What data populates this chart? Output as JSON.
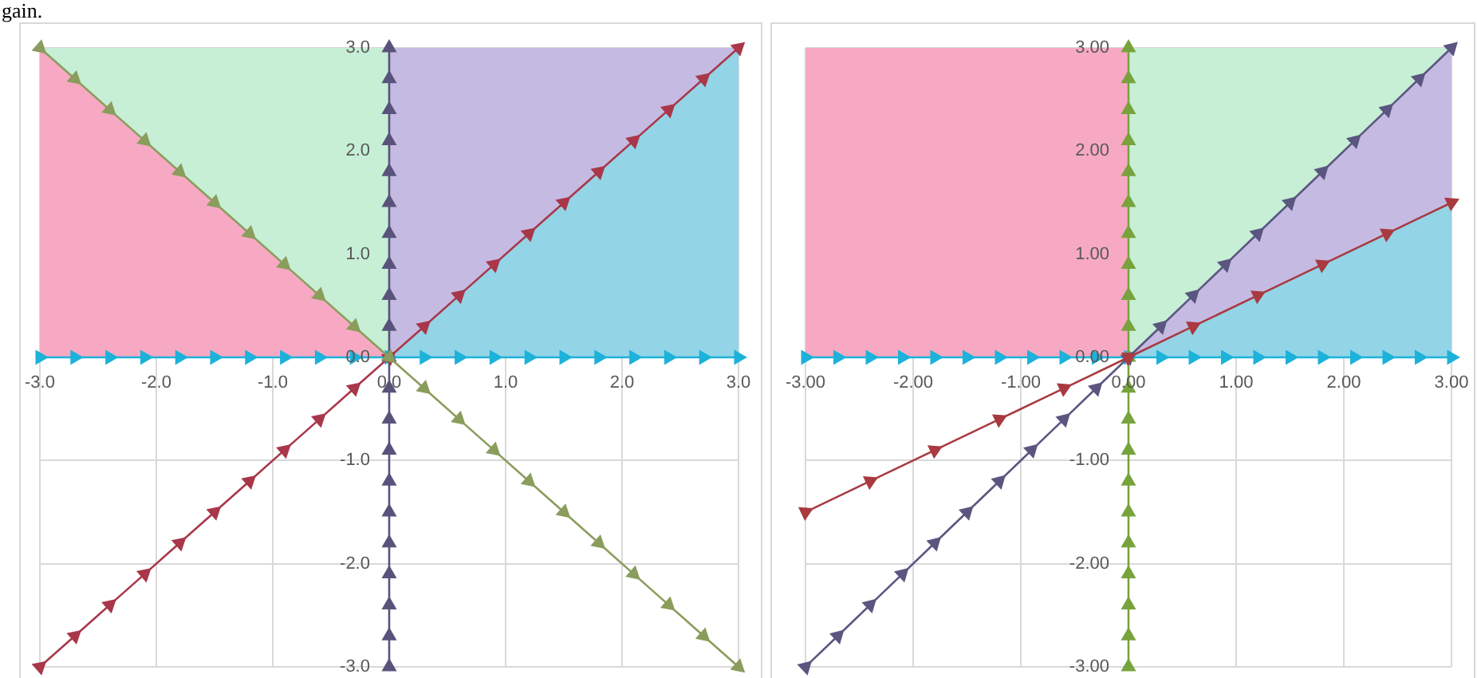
{
  "chart_data": [
    {
      "type": "line",
      "annotations": [
        "gain."
      ],
      "xlim": [
        -3,
        3
      ],
      "ylim": [
        -3,
        3
      ],
      "xticks": [
        {
          "value": -3,
          "label": "-3.0"
        },
        {
          "value": -2,
          "label": "-2.0"
        },
        {
          "value": -1,
          "label": "-1.0"
        },
        {
          "value": 0,
          "label": "0.0"
        },
        {
          "value": 1,
          "label": "1.0"
        },
        {
          "value": 2,
          "label": "2.0"
        },
        {
          "value": 3,
          "label": "3.0"
        }
      ],
      "yticks": [
        {
          "value": -3,
          "label": "-3.0"
        },
        {
          "value": -2,
          "label": "-2.0"
        },
        {
          "value": -1,
          "label": "-1.0"
        },
        {
          "value": 0,
          "label": "0.0"
        },
        {
          "value": 1,
          "label": "1.0"
        },
        {
          "value": 2,
          "label": "2.0"
        },
        {
          "value": 3,
          "label": "3.0"
        }
      ],
      "grid": true,
      "series": [
        {
          "type": "area",
          "color": "#c6efd6",
          "x": [
            -3,
            0
          ],
          "values": [
            3,
            3
          ]
        },
        {
          "type": "area",
          "color": "#f7a9c4",
          "x": [
            -3,
            0,
            3
          ],
          "values": [
            3,
            0,
            0
          ]
        },
        {
          "type": "area",
          "color": "#c5bbe2",
          "x": [
            0,
            3
          ],
          "values": [
            3,
            3
          ]
        },
        {
          "type": "area",
          "color": "#93d4e6",
          "x": [
            -0.3,
            0,
            3
          ],
          "values": [
            0,
            0,
            3
          ]
        },
        {
          "color": "#1cb2da",
          "marker": "triangle",
          "x": [
            -3,
            -2.7,
            -2.4,
            -2.1,
            -1.8,
            -1.5,
            -1.2,
            -0.9,
            -0.6,
            -0.3,
            0,
            0.3,
            0.6,
            0.9,
            1.2,
            1.5,
            1.8,
            2.1,
            2.4,
            2.7,
            3
          ],
          "values": [
            0,
            0,
            0,
            0,
            0,
            0,
            0,
            0,
            0,
            0,
            0,
            0,
            0,
            0,
            0,
            0,
            0,
            0,
            0,
            0,
            0
          ]
        },
        {
          "color": "#59537c",
          "marker": "triangle",
          "x": [
            0,
            0,
            0,
            0,
            0,
            0,
            0,
            0,
            0,
            0,
            0,
            0,
            0,
            0,
            0,
            0,
            0,
            0,
            0,
            0,
            0
          ],
          "values": [
            -3,
            -2.7,
            -2.4,
            -2.1,
            -1.8,
            -1.5,
            -1.2,
            -0.9,
            -0.6,
            -0.3,
            0,
            0.3,
            0.6,
            0.9,
            1.2,
            1.5,
            1.8,
            2.1,
            2.4,
            2.7,
            3
          ]
        },
        {
          "color": "#a9374a",
          "marker": "triangle",
          "x": [
            -3,
            -2.7,
            -2.4,
            -2.1,
            -1.8,
            -1.5,
            -1.2,
            -0.9,
            -0.6,
            -0.3,
            0,
            0.3,
            0.6,
            0.9,
            1.2,
            1.5,
            1.8,
            2.1,
            2.4,
            2.7,
            3
          ],
          "values": [
            -3,
            -2.7,
            -2.4,
            -2.1,
            -1.8,
            -1.5,
            -1.2,
            -0.9,
            -0.6,
            -0.3,
            0,
            0.3,
            0.6,
            0.9,
            1.2,
            1.5,
            1.8,
            2.1,
            2.4,
            2.7,
            3
          ]
        },
        {
          "color": "#8a9d5c",
          "marker": "triangle",
          "x": [
            -3,
            -2.7,
            -2.4,
            -2.1,
            -1.8,
            -1.5,
            -1.2,
            -0.9,
            -0.6,
            -0.3,
            0,
            0.3,
            0.6,
            0.9,
            1.2,
            1.5,
            1.8,
            2.1,
            2.4,
            2.7,
            3
          ],
          "values": [
            3,
            2.7,
            2.4,
            2.1,
            1.8,
            1.5,
            1.2,
            0.9,
            0.6,
            0.3,
            0,
            -0.3,
            -0.6,
            -0.9,
            -1.2,
            -1.5,
            -1.8,
            -2.1,
            -2.4,
            -2.7,
            -3
          ]
        }
      ]
    },
    {
      "type": "line",
      "xlim": [
        -3,
        3
      ],
      "ylim": [
        -3,
        3
      ],
      "xticks": [
        {
          "value": -3,
          "label": "-3.00"
        },
        {
          "value": -2,
          "label": "-2.00"
        },
        {
          "value": -1,
          "label": "-1.00"
        },
        {
          "value": 0,
          "label": "0.00"
        },
        {
          "value": 1,
          "label": "1.00"
        },
        {
          "value": 2,
          "label": "2.00"
        },
        {
          "value": 3,
          "label": "3.00"
        }
      ],
      "yticks": [
        {
          "value": -3,
          "label": "-3.00"
        },
        {
          "value": -2,
          "label": "-2.00"
        },
        {
          "value": -1,
          "label": "-1.00"
        },
        {
          "value": 0,
          "label": "0.00"
        },
        {
          "value": 1,
          "label": "1.00"
        },
        {
          "value": 2,
          "label": "2.00"
        },
        {
          "value": 3,
          "label": "3.00"
        }
      ],
      "grid": true,
      "series": [
        {
          "type": "area",
          "color": "#f7a9c4",
          "x": [
            -3,
            0
          ],
          "values": [
            3,
            3
          ]
        },
        {
          "type": "area",
          "color": "#c6efd6",
          "x": [
            0,
            3
          ],
          "values": [
            3,
            3
          ]
        },
        {
          "type": "area",
          "color": "#c5bbe2",
          "x": [
            -3,
            0,
            3
          ],
          "values": [
            0,
            0,
            3
          ]
        },
        {
          "type": "area",
          "color": "#93d4e6",
          "x": [
            0,
            3
          ],
          "values": [
            0,
            1.5
          ]
        },
        {
          "color": "#1cb2da",
          "marker": "triangle",
          "x": [
            -3,
            -2.7,
            -2.4,
            -2.1,
            -1.8,
            -1.5,
            -1.2,
            -0.9,
            -0.6,
            -0.3,
            0,
            0.3,
            0.6,
            0.9,
            1.2,
            1.5,
            1.8,
            2.1,
            2.4,
            2.7,
            3
          ],
          "values": [
            0,
            0,
            0,
            0,
            0,
            0,
            0,
            0,
            0,
            0,
            0,
            0,
            0,
            0,
            0,
            0,
            0,
            0,
            0,
            0,
            0
          ]
        },
        {
          "color": "#77a33c",
          "marker": "triangle",
          "x": [
            0,
            0,
            0,
            0,
            0,
            0,
            0,
            0,
            0,
            0,
            0,
            0,
            0,
            0,
            0,
            0,
            0,
            0,
            0,
            0,
            0
          ],
          "values": [
            -3,
            -2.7,
            -2.4,
            -2.1,
            -1.8,
            -1.5,
            -1.2,
            -0.9,
            -0.6,
            -0.3,
            0,
            0.3,
            0.6,
            0.9,
            1.2,
            1.5,
            1.8,
            2.1,
            2.4,
            2.7,
            3
          ]
        },
        {
          "color": "#5b5680",
          "marker": "triangle",
          "x": [
            -3,
            -2.7,
            -2.4,
            -2.1,
            -1.8,
            -1.5,
            -1.2,
            -0.9,
            -0.6,
            -0.3,
            0,
            0.3,
            0.6,
            0.9,
            1.2,
            1.5,
            1.8,
            2.1,
            2.4,
            2.7,
            3
          ],
          "values": [
            -3,
            -2.7,
            -2.4,
            -2.1,
            -1.8,
            -1.5,
            -1.2,
            -0.9,
            -0.6,
            -0.3,
            0,
            0.3,
            0.6,
            0.9,
            1.2,
            1.5,
            1.8,
            2.1,
            2.4,
            2.7,
            3
          ]
        },
        {
          "color": "#a93a40",
          "marker": "triangle",
          "x": [
            -3,
            -2.4,
            -1.8,
            -1.2,
            -0.6,
            0,
            0.6,
            1.2,
            1.8,
            2.4,
            3
          ],
          "values": [
            -1.5,
            -1.2,
            -0.9,
            -0.6,
            -0.3,
            0,
            0.3,
            0.6,
            0.9,
            1.2,
            1.5
          ]
        }
      ]
    }
  ]
}
